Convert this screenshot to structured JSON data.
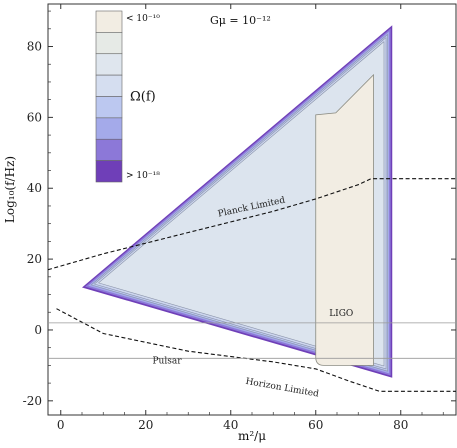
{
  "chart_data": {
    "type": "contour",
    "annotation": "Gμ = 10⁻¹²",
    "xlabel": "m²/μ",
    "ylabel": "Log₁₀(f/Hz)",
    "xlim": [
      -3,
      93
    ],
    "ylim": [
      -24,
      92
    ],
    "xticks": [
      0,
      20,
      40,
      60,
      80
    ],
    "yticks": [
      -20,
      0,
      20,
      40,
      60,
      80
    ],
    "grid": false,
    "legend": {
      "title": "Ω(f)",
      "top_label": "< 10⁻¹⁰",
      "bottom_label": "> 10⁻¹⁸",
      "colors": [
        "#f2ede3",
        "#e6eae6",
        "#dfe6ee",
        "#d5def0",
        "#bcc8f0",
        "#a4aaea",
        "#8c78d8",
        "#6f3fb8"
      ]
    },
    "region": {
      "vertices": [
        [
          5,
          12
        ],
        [
          78,
          86
        ],
        [
          78,
          -13.5
        ]
      ],
      "level_colors": [
        "#6f3fb8",
        "#8c78d8",
        "#a4aaea",
        "#bcc8f0",
        "#cdd6ef",
        "#dce4ee",
        "#f2ede3"
      ]
    },
    "series": [
      {
        "name": "Planck Limited",
        "style": "dashed",
        "x": [
          -3,
          10,
          30,
          50,
          60,
          70,
          73,
          93
        ],
        "y": [
          17,
          21.5,
          27.5,
          33.5,
          37,
          41,
          42.7,
          42.7
        ]
      },
      {
        "name": "Horizon Limited",
        "style": "dashed",
        "x": [
          -1,
          10,
          30,
          50,
          60,
          68,
          75,
          93
        ],
        "y": [
          6,
          -1,
          -6,
          -9,
          -11,
          -14.5,
          -17.3,
          -17.3
        ]
      },
      {
        "name": "LIGO",
        "style": "solid-thin",
        "x": [
          -3,
          93
        ],
        "y": [
          2,
          2
        ]
      },
      {
        "name": "Pulsar",
        "style": "solid-thin",
        "x": [
          -3,
          93
        ],
        "y": [
          -8,
          -8
        ]
      }
    ],
    "annotations": [
      {
        "text": "Planck Limited",
        "x": 45,
        "y": 34
      },
      {
        "text": "LIGO",
        "x": 66,
        "y": 4
      },
      {
        "text": "Pulsar",
        "x": 25,
        "y": -9.5
      },
      {
        "text": "Horizon Limited",
        "x": 52,
        "y": -17
      }
    ]
  }
}
